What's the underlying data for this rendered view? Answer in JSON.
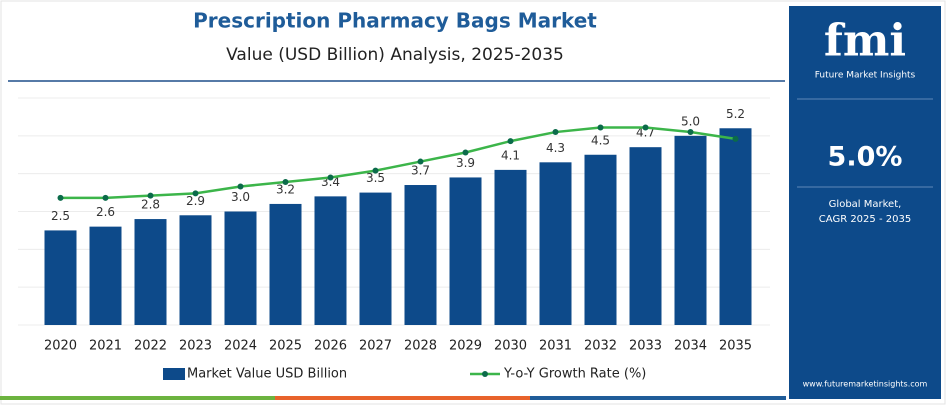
{
  "chart_data": {
    "type": "bar",
    "title": "Prescription Pharmacy Bags Market",
    "subtitle": "Value (USD Billion) Analysis, 2025-2035",
    "categories": [
      "2020",
      "2021",
      "2022",
      "2023",
      "2024",
      "2025",
      "2026",
      "2027",
      "2028",
      "2029",
      "2030",
      "2031",
      "2032",
      "2033",
      "2034",
      "2035"
    ],
    "series": [
      {
        "name": "Market Value USD Billion",
        "color": "#0d4a8a",
        "values": [
          2.5,
          2.6,
          2.8,
          2.9,
          3.0,
          3.2,
          3.4,
          3.5,
          3.7,
          3.9,
          4.1,
          4.3,
          4.5,
          4.7,
          5.0,
          5.2
        ],
        "value_labels": [
          "2.5",
          "2.6",
          "2.8",
          "2.9",
          "3.0",
          "3.2",
          "3.4",
          "3.5",
          "3.7",
          "3.9",
          "4.1",
          "4.3",
          "4.5",
          "4.7",
          "5.0",
          "5.2"
        ]
      },
      {
        "name": "Y-o-Y Growth Rate (%)",
        "color": "#3cb54a",
        "type": "line",
        "axis": "y2",
        "values": [
          5.6,
          5.6,
          5.7,
          5.8,
          6.1,
          6.3,
          6.5,
          6.8,
          7.2,
          7.6,
          8.1,
          8.5,
          8.7,
          8.7,
          8.5,
          8.2
        ]
      }
    ],
    "ylim": [
      0,
      6
    ],
    "yticks": [
      0,
      1,
      2,
      3,
      4,
      5,
      6
    ],
    "y2lim": [
      0,
      10
    ],
    "grid": true
  },
  "sidebar": {
    "logo": "fmi",
    "logo_subtitle": "Future Market Insights",
    "cagr": "5.0%",
    "cagr_label": [
      "Global Market,",
      "CAGR 2025 - 2035"
    ],
    "website": "www.futuremarketinsights.com"
  }
}
